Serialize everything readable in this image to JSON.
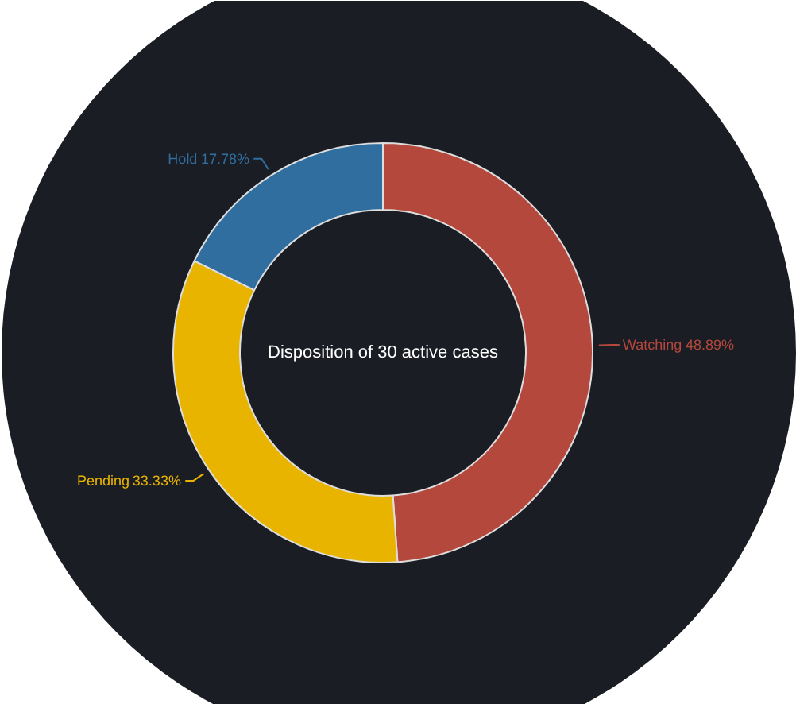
{
  "chart_data": {
    "type": "donut",
    "title": "Disposition of 30 active cases",
    "categories": [
      "Watching",
      "Pending",
      "Hold"
    ],
    "values": [
      48.89,
      33.33,
      17.78
    ],
    "colors": [
      "#b5483c",
      "#e9b400",
      "#2f6e9e"
    ],
    "value_labels": [
      "48.89%",
      "33.33%",
      "17.78%"
    ]
  }
}
